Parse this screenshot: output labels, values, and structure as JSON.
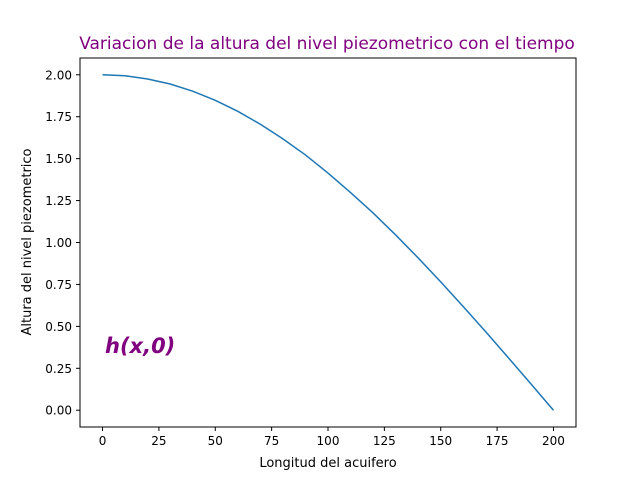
{
  "chart_data": {
    "type": "line",
    "title": "Variacion de la altura del nivel piezometrico con el tiempo",
    "xlabel": "Longitud del acuifero",
    "ylabel": "Altura del nivel piezometrico",
    "annotation": "h(x,0)",
    "xlim": [
      -10,
      210
    ],
    "ylim": [
      -0.1,
      2.1
    ],
    "grid": false,
    "xticks": [
      0,
      25,
      50,
      75,
      100,
      125,
      150,
      175,
      200
    ],
    "xtick_labels": [
      "0",
      "25",
      "50",
      "75",
      "100",
      "125",
      "150",
      "175",
      "200"
    ],
    "yticks": [
      0,
      0.25,
      0.5,
      0.75,
      1.0,
      1.25,
      1.5,
      1.75,
      2.0
    ],
    "ytick_labels": [
      "0.00",
      "0.25",
      "0.50",
      "0.75",
      "1.00",
      "1.25",
      "1.50",
      "1.75",
      "2.00"
    ],
    "series": [
      {
        "x": [
          0,
          10,
          20,
          30,
          40,
          50,
          60,
          70,
          80,
          90,
          100,
          110,
          120,
          130,
          140,
          150,
          160,
          170,
          180,
          190,
          200
        ],
        "y": [
          2.0,
          1.994,
          1.975,
          1.945,
          1.902,
          1.848,
          1.782,
          1.705,
          1.618,
          1.522,
          1.414,
          1.298,
          1.176,
          1.045,
          0.908,
          0.765,
          0.618,
          0.467,
          0.313,
          0.157,
          0.0
        ]
      }
    ]
  },
  "colors": {
    "line": "#1f77b4",
    "title": "#800080",
    "annotation": "#800080",
    "axes": "#000000"
  }
}
